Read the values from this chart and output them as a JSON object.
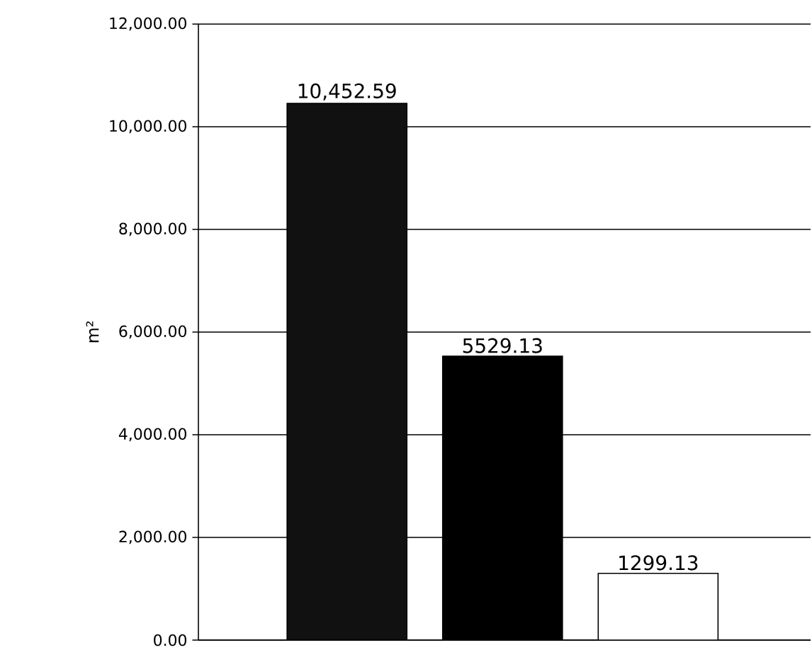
{
  "chart_data": {
    "type": "bar",
    "ylabel": "m²",
    "categories": [
      null,
      null,
      null
    ],
    "values": [
      10452.59,
      5529.13,
      1299.13
    ],
    "colors": [
      "#111111",
      "#000000",
      "#ffffff"
    ],
    "value_labels": [
      "10,452.59",
      "5529.13",
      "1299.13"
    ],
    "ylim": [
      0,
      12000
    ],
    "yticks": [
      {
        "value": 0,
        "label": "0.00"
      },
      {
        "value": 2000,
        "label": "2,000.00"
      },
      {
        "value": 4000,
        "label": "4,000.00"
      },
      {
        "value": 6000,
        "label": "6,000.00"
      },
      {
        "value": 8000,
        "label": "8,000.00"
      },
      {
        "value": 10000,
        "label": "10,000.00"
      },
      {
        "value": 12000,
        "label": "12,000.00"
      }
    ],
    "grid": "y"
  }
}
